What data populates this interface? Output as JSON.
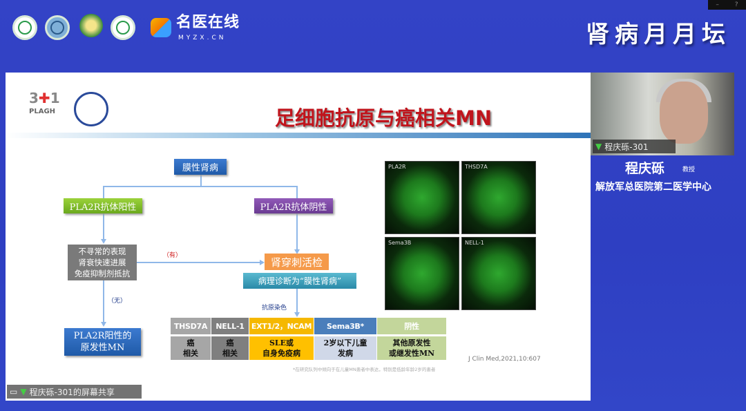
{
  "header": {
    "brand_name": "名医在线",
    "brand_domain": "MYZX.CN",
    "forum_title": "肾病月月坛",
    "window_controls": [
      "–",
      "?"
    ]
  },
  "slide": {
    "title": "足细胞抗原与癌相关MN",
    "logo_text": "PLAGH",
    "flow": {
      "root": "膜性肾病",
      "left": "PLA2R抗体阳性",
      "right": "PLA2R抗体阴性",
      "unusual": [
        "不寻常的表现",
        "肾衰快速进展",
        "免疫抑制剂抵抗"
      ],
      "yes_label": "（有）",
      "no_label": "（无）",
      "biopsy": "肾穿刺活检",
      "pathology": "病理诊断为“膜性肾病”",
      "result_left": [
        "PLA2R阳性的",
        "原发性MN"
      ],
      "stain_label": "抗原染色"
    },
    "table": {
      "headers": [
        "THSD7A",
        "NELL-1",
        "EXT1/2，NCAM",
        "Sema3B*",
        "阴性"
      ],
      "header_colors": [
        "#a6a6a6",
        "#7f7f7f",
        "#f5b800",
        "#4a7ebb",
        "#c3d69b"
      ],
      "cells": [
        [
          "癌",
          "相关"
        ],
        [
          "癌",
          "相关"
        ],
        [
          "SLE或",
          "自身免疫病"
        ],
        [
          "2岁以下儿童",
          "发病"
        ],
        [
          "其他原发性",
          "或继发性MN"
        ]
      ],
      "cell_colors": [
        "#a6a6a6",
        "#7f7f7f",
        "#ffc000",
        "#d0d8e8",
        "#c3d69b"
      ]
    },
    "images": [
      "PLA2R",
      "THSD7A",
      "Sema3B",
      "NELL-1"
    ],
    "footnote": "*在研究队列中倾向于在儿童MN患者中表达，特别是低龄年龄2岁的患者",
    "citation": "J Clin Med,2021,10:607"
  },
  "speaker": {
    "video_label": "程庆砾-301",
    "name": "程庆砾",
    "title": "教授",
    "affiliation": "解放军总医院第二医学中心"
  },
  "share_label": "程庆砾-301的屏幕共享"
}
